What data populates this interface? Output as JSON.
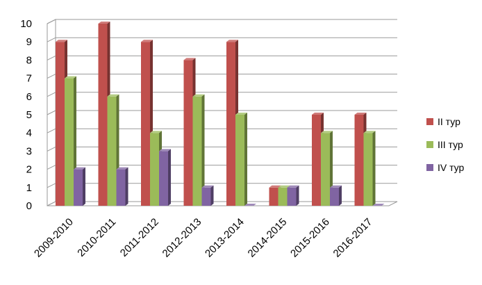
{
  "chart_data": {
    "type": "bar",
    "title": "",
    "xlabel": "",
    "ylabel": "",
    "ylim": [
      0,
      10
    ],
    "yticks": [
      0,
      1,
      2,
      3,
      4,
      5,
      6,
      7,
      8,
      9,
      10
    ],
    "grid": true,
    "legend_position": "right",
    "categories": [
      "2009-2010",
      "2010-2011",
      "2011-2012",
      "2012-2013",
      "2013-2014",
      "2014-2015",
      "2015-2016",
      "2016-2017"
    ],
    "series": [
      {
        "name": "II тур",
        "color": "#C0504D",
        "values": [
          9,
          10,
          9,
          8,
          9,
          1,
          5,
          5
        ]
      },
      {
        "name": "III тур",
        "color": "#9BBB59",
        "values": [
          7,
          6,
          4,
          6,
          5,
          1,
          4,
          4
        ]
      },
      {
        "name": "IV тур",
        "color": "#8064A2",
        "values": [
          2,
          2,
          3,
          1,
          0,
          1,
          1,
          0
        ]
      }
    ]
  }
}
